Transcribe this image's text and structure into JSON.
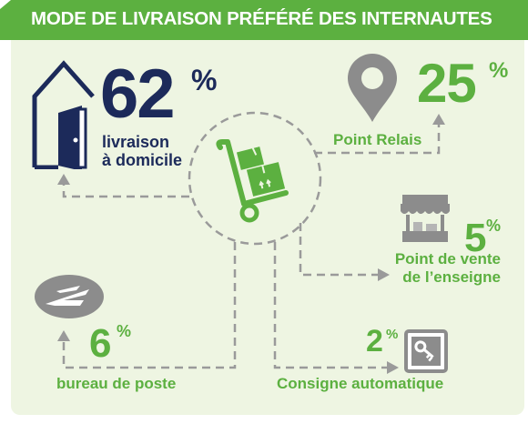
{
  "header": {
    "title": "MODE DE LIVRAISON PRÉFÉRÉ DES INTERNAUTES"
  },
  "percent_sign": "%",
  "items": [
    {
      "id": "domicile",
      "value": "62",
      "label_lines": [
        "livraison",
        "à domicile"
      ],
      "icon": "house-door-icon"
    },
    {
      "id": "relais",
      "value": "25",
      "label_lines": [
        "Point Relais"
      ],
      "icon": "map-pin-icon"
    },
    {
      "id": "enseigne",
      "value": "5",
      "label_lines": [
        "Point de vente",
        "de l’enseigne"
      ],
      "icon": "shop-stall-icon"
    },
    {
      "id": "poste",
      "value": "6",
      "label_lines": [
        "bureau de poste"
      ],
      "icon": "la-poste-logo-icon"
    },
    {
      "id": "consigne",
      "value": "2",
      "label_lines": [
        "Consigne automatique"
      ],
      "icon": "locker-key-icon"
    }
  ],
  "center": {
    "icon": "hand-truck-boxes-icon"
  },
  "colors": {
    "green": "#5cb040",
    "navy": "#1c2a5a",
    "gray": "#9a9a9a",
    "background": "#eef5e2"
  }
}
